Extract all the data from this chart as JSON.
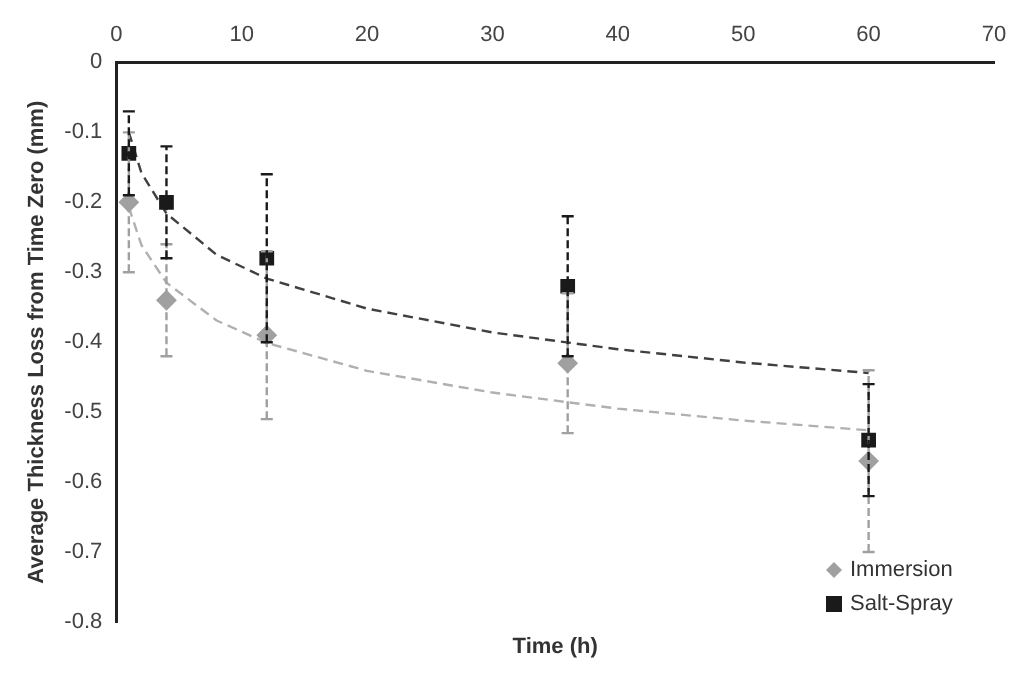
{
  "chart_data": {
    "type": "scatter",
    "xlabel": "Time (h)",
    "ylabel": "Average Thickness Loss from Time Zero (mm)",
    "xlim": [
      0,
      70
    ],
    "xticks": [
      0,
      10,
      20,
      30,
      40,
      50,
      60,
      70
    ],
    "ylim": [
      -0.8,
      0
    ],
    "yticks": [
      -0.8,
      -0.7,
      -0.6,
      -0.5,
      -0.4,
      -0.3,
      -0.2,
      -0.1,
      0
    ],
    "grid": false,
    "legend": "bottom right",
    "series": [
      {
        "name": "Immersion",
        "type": "scatter",
        "color": "#a0a0a0",
        "marker": "diamond",
        "x": [
          1,
          4,
          12,
          36,
          60
        ],
        "values": [
          -0.2,
          -0.34,
          -0.39,
          -0.43,
          -0.57
        ],
        "errors": [
          0.1,
          0.08,
          0.12,
          0.1,
          0.13
        ]
      },
      {
        "name": "Salt-Spray",
        "type": "scatter",
        "color": "#1a1a1a",
        "marker": "square",
        "x": [
          1,
          4,
          12,
          36,
          60
        ],
        "values": [
          -0.13,
          -0.2,
          -0.28,
          -0.32,
          -0.54
        ],
        "errors": [
          0.06,
          0.08,
          0.12,
          0.1,
          0.08
        ]
      },
      {
        "type": "line",
        "color": "#b0b0b0",
        "line_style": "dashed",
        "marker": "none",
        "x": [
          1,
          2,
          4,
          8,
          12,
          20,
          30,
          40,
          50,
          60
        ],
        "values": [
          -0.207,
          -0.261,
          -0.315,
          -0.369,
          -0.401,
          -0.441,
          -0.472,
          -0.495,
          -0.512,
          -0.526
        ]
      },
      {
        "type": "line",
        "color": "#404040",
        "line_style": "dashed",
        "marker": "none",
        "x": [
          1,
          2,
          4,
          8,
          12,
          20,
          30,
          40,
          50,
          60
        ],
        "values": [
          -0.1,
          -0.158,
          -0.216,
          -0.275,
          -0.309,
          -0.352,
          -0.386,
          -0.41,
          -0.429,
          -0.444
        ]
      }
    ]
  }
}
